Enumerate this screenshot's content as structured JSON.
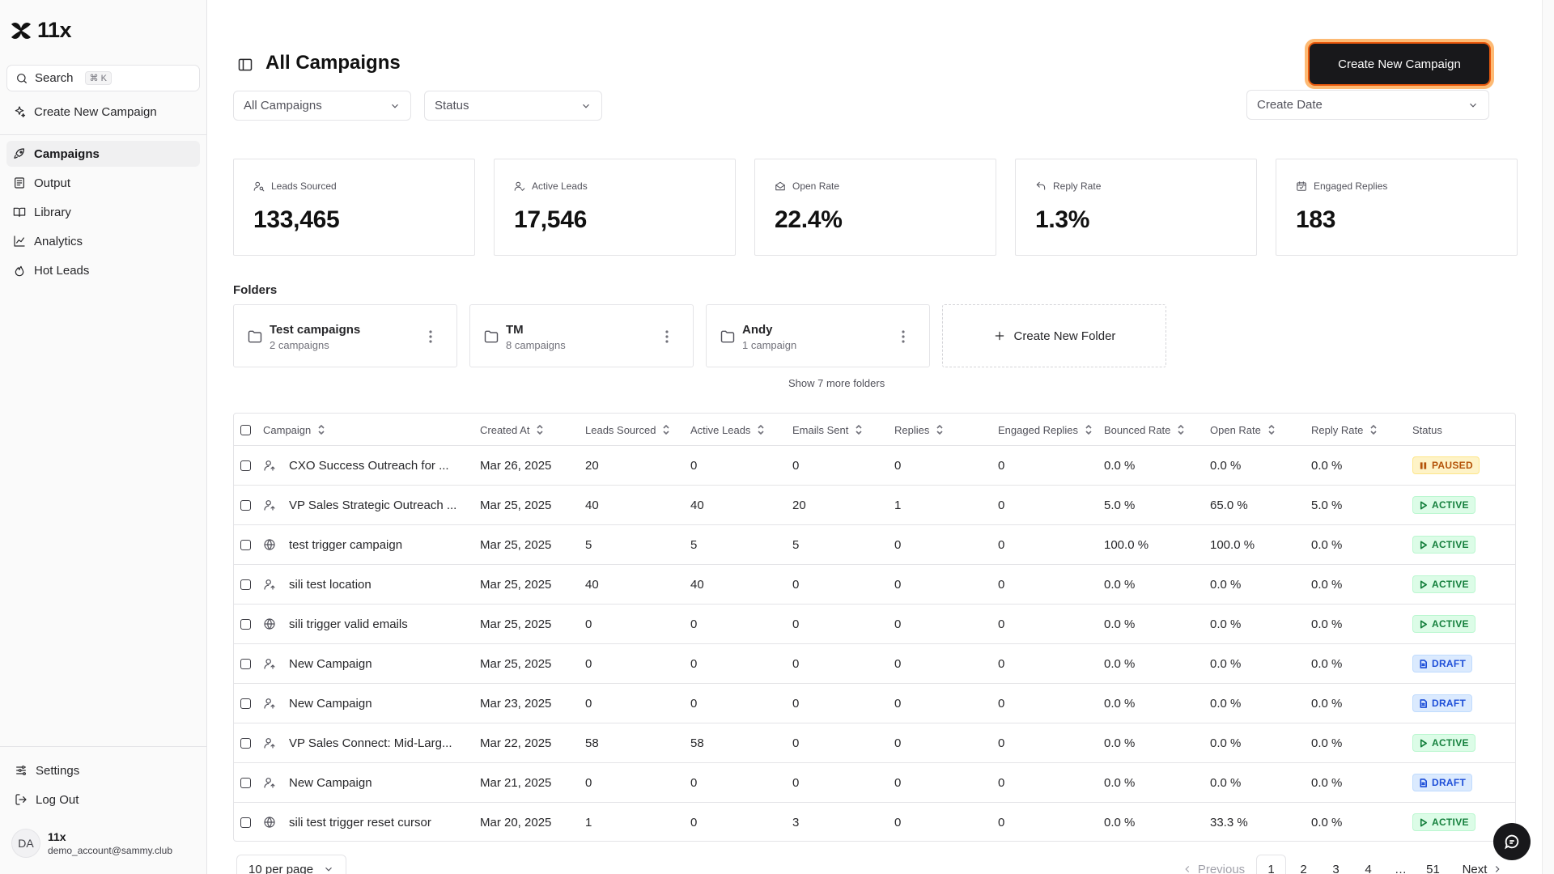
{
  "brand": {
    "name": "11x"
  },
  "sidebar": {
    "search_label": "Search",
    "search_shortcut": "⌘ K",
    "create_label": "Create New Campaign",
    "items": [
      {
        "label": "Campaigns",
        "icon": "rocket-icon",
        "active": true
      },
      {
        "label": "Output",
        "icon": "document-icon"
      },
      {
        "label": "Library",
        "icon": "book-icon"
      },
      {
        "label": "Analytics",
        "icon": "chart-line-icon"
      },
      {
        "label": "Hot Leads",
        "icon": "flame-icon"
      }
    ],
    "settings_label": "Settings",
    "logout_label": "Log Out",
    "user": {
      "initials": "DA",
      "name": "11x",
      "email": "demo_account@sammy.club"
    }
  },
  "header": {
    "title": "All Campaigns",
    "create_button": "Create New Campaign",
    "filters": {
      "campaigns": "All Campaigns",
      "status": "Status",
      "date": "Create Date"
    }
  },
  "stats": [
    {
      "label": "Leads Sourced",
      "value": "133,465",
      "icon": "user-search-icon"
    },
    {
      "label": "Active Leads",
      "value": "17,546",
      "icon": "user-check-icon"
    },
    {
      "label": "Open Rate",
      "value": "22.4%",
      "icon": "mail-open-icon"
    },
    {
      "label": "Reply Rate",
      "value": "1.3%",
      "icon": "reply-icon"
    },
    {
      "label": "Engaged Replies",
      "value": "183",
      "icon": "calendar-check-icon"
    }
  ],
  "folders": {
    "heading": "Folders",
    "items": [
      {
        "name": "Test campaigns",
        "count": "2 campaigns"
      },
      {
        "name": "TM",
        "count": "8 campaigns"
      },
      {
        "name": "Andy",
        "count": "1 campaign"
      }
    ],
    "create_label": "Create New Folder",
    "show_more": "Show 7 more folders"
  },
  "table": {
    "columns": [
      "Campaign",
      "Created At",
      "Leads Sourced",
      "Active Leads",
      "Emails Sent",
      "Replies",
      "Engaged Replies",
      "Bounced Rate",
      "Open Rate",
      "Reply Rate",
      "Status"
    ],
    "rows": [
      {
        "type": "user",
        "name": "CXO Success Outreach for ...",
        "created": "Mar 26, 2025",
        "leads": "20",
        "active": "0",
        "sent": "0",
        "replies": "0",
        "engaged": "0",
        "bounced": "0.0 %",
        "open": "0.0 %",
        "reply": "0.0 %",
        "status": "PAUSED"
      },
      {
        "type": "user",
        "name": "VP Sales Strategic Outreach ...",
        "created": "Mar 25, 2025",
        "leads": "40",
        "active": "40",
        "sent": "20",
        "replies": "1",
        "engaged": "0",
        "bounced": "5.0 %",
        "open": "65.0 %",
        "reply": "5.0 %",
        "status": "ACTIVE"
      },
      {
        "type": "globe",
        "name": "test trigger campaign",
        "created": "Mar 25, 2025",
        "leads": "5",
        "active": "5",
        "sent": "5",
        "replies": "0",
        "engaged": "0",
        "bounced": "100.0 %",
        "open": "100.0 %",
        "reply": "0.0 %",
        "status": "ACTIVE"
      },
      {
        "type": "user",
        "name": "sili test location",
        "created": "Mar 25, 2025",
        "leads": "40",
        "active": "40",
        "sent": "0",
        "replies": "0",
        "engaged": "0",
        "bounced": "0.0 %",
        "open": "0.0 %",
        "reply": "0.0 %",
        "status": "ACTIVE"
      },
      {
        "type": "globe",
        "name": "sili trigger valid emails",
        "created": "Mar 25, 2025",
        "leads": "0",
        "active": "0",
        "sent": "0",
        "replies": "0",
        "engaged": "0",
        "bounced": "0.0 %",
        "open": "0.0 %",
        "reply": "0.0 %",
        "status": "ACTIVE"
      },
      {
        "type": "user",
        "name": "New Campaign",
        "created": "Mar 25, 2025",
        "leads": "0",
        "active": "0",
        "sent": "0",
        "replies": "0",
        "engaged": "0",
        "bounced": "0.0 %",
        "open": "0.0 %",
        "reply": "0.0 %",
        "status": "DRAFT"
      },
      {
        "type": "user",
        "name": "New Campaign",
        "created": "Mar 23, 2025",
        "leads": "0",
        "active": "0",
        "sent": "0",
        "replies": "0",
        "engaged": "0",
        "bounced": "0.0 %",
        "open": "0.0 %",
        "reply": "0.0 %",
        "status": "DRAFT"
      },
      {
        "type": "user",
        "name": "VP Sales Connect: Mid-Larg...",
        "created": "Mar 22, 2025",
        "leads": "58",
        "active": "58",
        "sent": "0",
        "replies": "0",
        "engaged": "0",
        "bounced": "0.0 %",
        "open": "0.0 %",
        "reply": "0.0 %",
        "status": "ACTIVE"
      },
      {
        "type": "user",
        "name": "New Campaign",
        "created": "Mar 21, 2025",
        "leads": "0",
        "active": "0",
        "sent": "0",
        "replies": "0",
        "engaged": "0",
        "bounced": "0.0 %",
        "open": "0.0 %",
        "reply": "0.0 %",
        "status": "DRAFT"
      },
      {
        "type": "globe",
        "name": "sili test trigger reset cursor",
        "created": "Mar 20, 2025",
        "leads": "1",
        "active": "0",
        "sent": "3",
        "replies": "0",
        "engaged": "0",
        "bounced": "0.0 %",
        "open": "33.3 %",
        "reply": "0.0 %",
        "status": "ACTIVE"
      }
    ]
  },
  "pagination": {
    "per_page": "10 per page",
    "previous": "Previous",
    "next": "Next",
    "pages": [
      "1",
      "2",
      "3",
      "4",
      "…",
      "51"
    ],
    "current": "1"
  },
  "colors": {
    "primary": "#18181b",
    "highlight_ring": "#ea580c",
    "paused": "#b45309",
    "active": "#15803d",
    "draft": "#1d4ed8"
  }
}
